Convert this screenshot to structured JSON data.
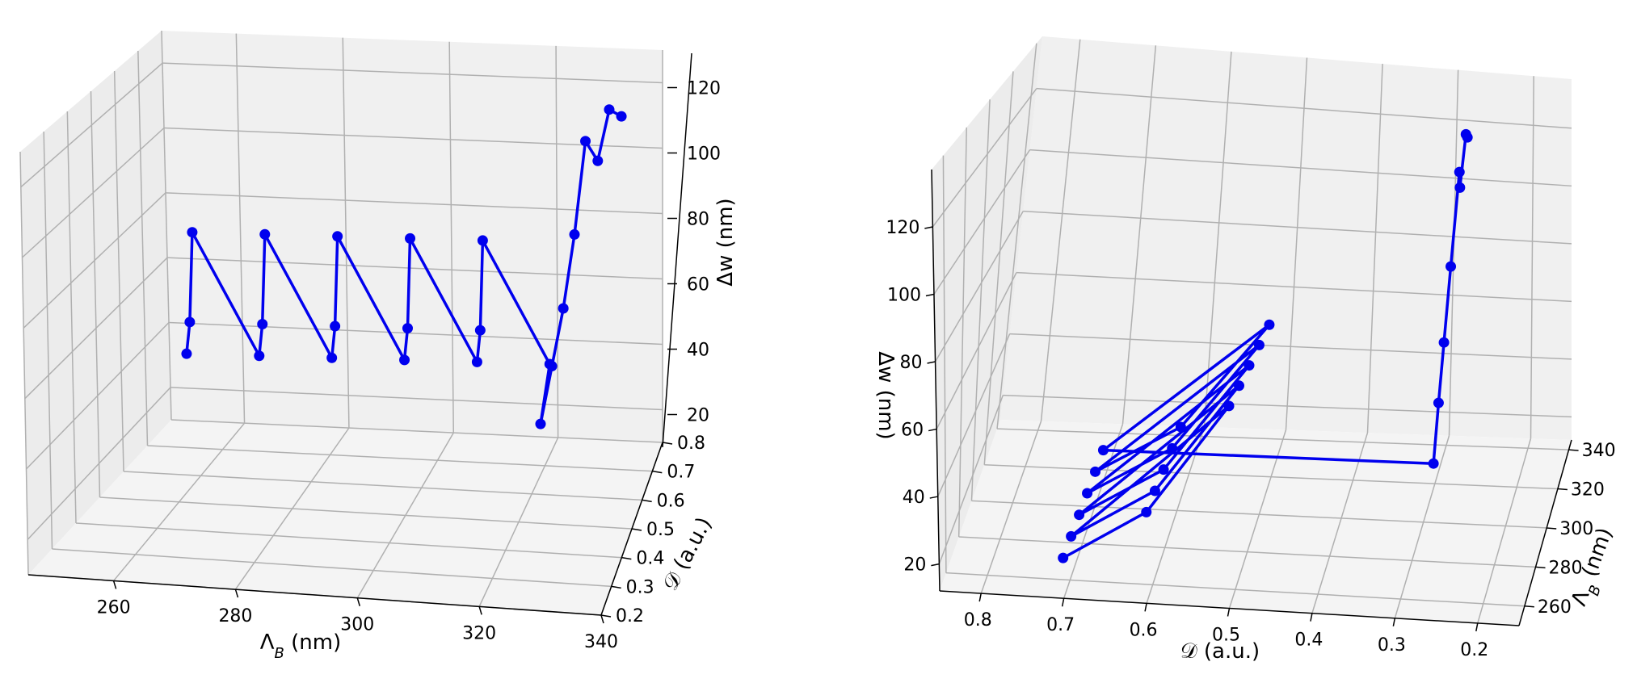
{
  "colors": {
    "series": "#0000ee",
    "grid": "#b0b0b0",
    "pane": "#f2f2f2"
  },
  "chart_data": [
    {
      "type": "line3d",
      "xlabel": "Λ_B (nm)",
      "ylabel": "𝒟 (a.u.)",
      "zlabel": "Δw (nm)",
      "x_ticks": [
        "260",
        "280",
        "300",
        "320",
        "340"
      ],
      "y_ticks": [
        "0.2",
        "0.3",
        "0.4",
        "0.5",
        "0.6",
        "0.7",
        "0.8"
      ],
      "z_ticks": [
        "20",
        "40",
        "60",
        "80",
        "100",
        "120"
      ],
      "xlim": [
        246,
        340
      ],
      "ylim": [
        0.2,
        0.8
      ],
      "zlim": [
        10,
        130
      ],
      "grid": true,
      "series": [
        {
          "x": [
            250,
            252,
            254,
            262,
            264,
            266,
            274,
            276,
            278,
            286,
            288,
            290,
            298,
            300,
            302,
            310,
            314,
            316,
            318,
            320,
            322,
            324,
            326,
            328
          ],
          "y": [
            0.7,
            0.6,
            0.5,
            0.7,
            0.6,
            0.5,
            0.7,
            0.6,
            0.5,
            0.7,
            0.6,
            0.5,
            0.7,
            0.6,
            0.5,
            0.7,
            0.3,
            0.3,
            0.3,
            0.3,
            0.3,
            0.3,
            0.3,
            0.3
          ],
          "z": [
            24,
            38,
            70,
            24,
            38,
            70,
            24,
            38,
            70,
            24,
            38,
            70,
            24,
            38,
            70,
            24,
            22,
            40,
            58,
            81,
            110,
            104,
            120,
            118
          ]
        }
      ]
    },
    {
      "type": "line3d",
      "xlabel": "𝒟 (a.u.)",
      "ylabel": "Λ_B (nm)",
      "zlabel": "Δw (nm)",
      "x_ticks": [
        "0.8",
        "0.7",
        "0.6",
        "0.5",
        "0.4",
        "0.3",
        "0.2"
      ],
      "y_ticks": [
        "260",
        "280",
        "300",
        "320",
        "340"
      ],
      "z_ticks": [
        "20",
        "40",
        "60",
        "80",
        "100",
        "120"
      ],
      "grid": true,
      "series": [
        {
          "x": [
            0.7,
            0.6,
            0.5,
            0.7,
            0.6,
            0.5,
            0.7,
            0.6,
            0.5,
            0.7,
            0.6,
            0.5,
            0.7,
            0.6,
            0.5,
            0.7,
            0.3,
            0.3,
            0.3,
            0.3,
            0.3,
            0.3,
            0.3,
            0.3
          ],
          "y": [
            250,
            252,
            254,
            262,
            264,
            266,
            274,
            276,
            278,
            286,
            288,
            290,
            298,
            300,
            302,
            310,
            314,
            316,
            318,
            320,
            322,
            324,
            326,
            328
          ],
          "z": [
            24,
            38,
            70,
            24,
            38,
            70,
            24,
            38,
            70,
            24,
            38,
            70,
            24,
            38,
            70,
            24,
            22,
            40,
            58,
            81,
            110,
            104,
            120,
            118
          ]
        }
      ]
    }
  ]
}
